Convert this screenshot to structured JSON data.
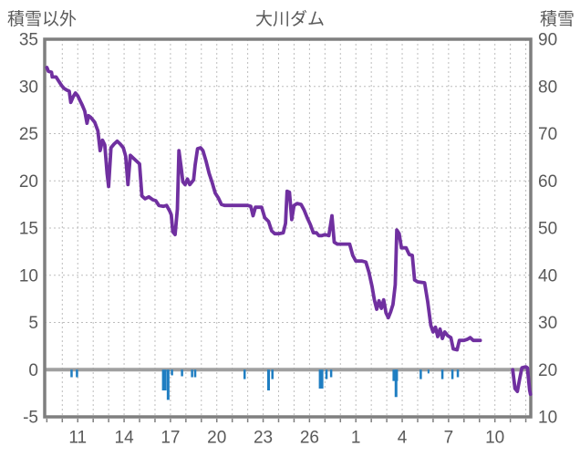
{
  "header": {
    "left_axis_title": "積雪以外",
    "title": "大川ダム",
    "right_axis_title": "積雪"
  },
  "colors": {
    "line": "#7030a0",
    "bars": "#1f7ec2",
    "text": "#595959",
    "border": "#7f7f7f",
    "zero_line": "#a0a0a0",
    "grid": "#bdbdbd",
    "background": "#ffffff"
  },
  "chart_data": {
    "type": "line",
    "title": "大川ダム",
    "grid": "dashed, vertical per day, horizontal per 5 left-units",
    "left_axis": {
      "title": "積雪以外",
      "tick_labels": [
        "35",
        "30",
        "25",
        "20",
        "15",
        "10",
        "5",
        "0",
        "-5"
      ],
      "tick_values": [
        35,
        30,
        25,
        20,
        15,
        10,
        5,
        0,
        -5
      ],
      "range": [
        -5,
        35
      ]
    },
    "right_axis": {
      "title": "積雪",
      "tick_labels": [
        "90",
        "80",
        "70",
        "60",
        "50",
        "40",
        "30",
        "20",
        "10"
      ],
      "tick_values": [
        90,
        80,
        70,
        60,
        50,
        40,
        30,
        20,
        10
      ],
      "range": [
        10,
        90
      ]
    },
    "x_axis": {
      "tick_labels": [
        "11",
        "14",
        "17",
        "20",
        "23",
        "26",
        "1",
        "4",
        "7",
        "10"
      ],
      "tick_day_index": [
        11,
        14,
        17,
        20,
        23,
        26,
        29,
        32,
        35,
        38
      ],
      "note": "day index: 9-28 = first month days 9-28, 29+ = second month day (index-28)",
      "domain_day_index": [
        8.86,
        40.32
      ],
      "minor_ticks": "every integer day"
    },
    "series": [
      {
        "name": "積雪 (snow depth line, plotted in left-axis units; right value = 2*left+20)",
        "type": "line",
        "color": "#7030a0",
        "segments": [
          [
            [
              9.0,
              32.0
            ],
            [
              9.1,
              31.6
            ],
            [
              9.3,
              31.5
            ],
            [
              9.35,
              31.0
            ],
            [
              9.6,
              31.0
            ],
            [
              9.75,
              30.6
            ],
            [
              9.95,
              30.1
            ],
            [
              10.1,
              29.8
            ],
            [
              10.3,
              29.6
            ],
            [
              10.45,
              29.5
            ],
            [
              10.55,
              28.3
            ],
            [
              10.7,
              28.9
            ],
            [
              10.85,
              29.3
            ],
            [
              11.0,
              29.0
            ],
            [
              11.15,
              28.5
            ],
            [
              11.3,
              28.0
            ],
            [
              11.45,
              27.4
            ],
            [
              11.6,
              26.1
            ],
            [
              11.7,
              26.9
            ],
            [
              11.85,
              26.7
            ],
            [
              12.1,
              26.2
            ],
            [
              12.3,
              25.3
            ],
            [
              12.45,
              23.2
            ],
            [
              12.6,
              24.3
            ],
            [
              12.75,
              23.8
            ],
            [
              12.9,
              20.8
            ],
            [
              13.0,
              19.4
            ],
            [
              13.15,
              23.5
            ],
            [
              13.35,
              23.9
            ],
            [
              13.55,
              24.2
            ],
            [
              13.75,
              23.9
            ],
            [
              13.95,
              23.5
            ],
            [
              14.1,
              22.6
            ],
            [
              14.25,
              19.6
            ],
            [
              14.4,
              22.7
            ],
            [
              14.6,
              22.4
            ],
            [
              14.8,
              22.1
            ],
            [
              15.0,
              21.8
            ],
            [
              15.15,
              18.4
            ],
            [
              15.35,
              18.1
            ],
            [
              15.6,
              18.3
            ],
            [
              15.85,
              18.0
            ],
            [
              16.05,
              17.9
            ],
            [
              16.25,
              17.4
            ],
            [
              16.55,
              17.3
            ],
            [
              16.75,
              17.4
            ],
            [
              16.95,
              16.8
            ],
            [
              17.05,
              16.4
            ],
            [
              17.15,
              14.6
            ],
            [
              17.3,
              14.3
            ],
            [
              17.45,
              17.0
            ],
            [
              17.55,
              23.2
            ],
            [
              17.7,
              21.3
            ],
            [
              17.8,
              19.9
            ],
            [
              17.95,
              19.6
            ],
            [
              18.1,
              20.2
            ],
            [
              18.25,
              19.6
            ],
            [
              18.4,
              19.9
            ],
            [
              18.5,
              20.1
            ],
            [
              18.6,
              21.7
            ],
            [
              18.75,
              23.4
            ],
            [
              18.95,
              23.5
            ],
            [
              19.1,
              23.2
            ],
            [
              19.3,
              22.1
            ],
            [
              19.5,
              20.8
            ],
            [
              19.7,
              19.8
            ],
            [
              19.9,
              18.7
            ],
            [
              20.1,
              18.2
            ],
            [
              20.3,
              17.5
            ],
            [
              20.5,
              17.4
            ],
            [
              21.0,
              17.4
            ],
            [
              21.5,
              17.4
            ],
            [
              22.0,
              17.4
            ],
            [
              22.2,
              17.3
            ],
            [
              22.35,
              16.3
            ],
            [
              22.5,
              17.2
            ],
            [
              22.9,
              17.2
            ],
            [
              23.1,
              16.1
            ],
            [
              23.35,
              15.7
            ],
            [
              23.55,
              14.7
            ],
            [
              23.75,
              14.4
            ],
            [
              24.0,
              14.4
            ],
            [
              24.3,
              14.5
            ],
            [
              24.45,
              15.5
            ],
            [
              24.55,
              18.9
            ],
            [
              24.7,
              18.8
            ],
            [
              24.85,
              15.9
            ],
            [
              25.0,
              17.4
            ],
            [
              25.2,
              17.6
            ],
            [
              25.45,
              17.5
            ],
            [
              25.65,
              16.9
            ],
            [
              25.85,
              16.1
            ],
            [
              26.05,
              15.4
            ],
            [
              26.25,
              14.5
            ],
            [
              26.45,
              14.5
            ],
            [
              26.6,
              14.2
            ],
            [
              26.8,
              14.2
            ],
            [
              27.0,
              14.3
            ],
            [
              27.25,
              14.2
            ],
            [
              27.45,
              16.3
            ],
            [
              27.6,
              13.5
            ],
            [
              27.8,
              13.3
            ],
            [
              28.2,
              13.3
            ],
            [
              28.6,
              13.3
            ],
            [
              28.8,
              12.1
            ],
            [
              29.0,
              11.5
            ],
            [
              29.4,
              11.5
            ],
            [
              29.65,
              11.4
            ],
            [
              29.85,
              10.3
            ],
            [
              30.05,
              8.8
            ],
            [
              30.2,
              7.4
            ],
            [
              30.35,
              6.4
            ],
            [
              30.5,
              7.3
            ],
            [
              30.65,
              6.5
            ],
            [
              30.8,
              7.4
            ],
            [
              30.95,
              6.0
            ],
            [
              31.1,
              5.5
            ],
            [
              31.25,
              6.1
            ],
            [
              31.4,
              6.9
            ],
            [
              31.55,
              9.0
            ],
            [
              31.65,
              14.8
            ],
            [
              31.8,
              14.4
            ],
            [
              31.95,
              12.9
            ],
            [
              32.25,
              12.9
            ],
            [
              32.45,
              12.2
            ],
            [
              32.65,
              12.1
            ],
            [
              32.8,
              9.5
            ],
            [
              33.0,
              9.3
            ],
            [
              33.45,
              9.2
            ],
            [
              33.65,
              7.2
            ],
            [
              33.85,
              4.7
            ],
            [
              34.0,
              4.0
            ],
            [
              34.15,
              4.5
            ],
            [
              34.3,
              3.5
            ],
            [
              34.45,
              4.3
            ],
            [
              34.6,
              3.3
            ],
            [
              34.75,
              4.0
            ],
            [
              34.95,
              3.6
            ],
            [
              35.15,
              3.4
            ],
            [
              35.3,
              2.2
            ],
            [
              35.55,
              2.1
            ],
            [
              35.7,
              3.1
            ],
            [
              36.0,
              3.1
            ],
            [
              36.2,
              3.2
            ],
            [
              36.4,
              3.4
            ],
            [
              36.6,
              3.1
            ],
            [
              37.05,
              3.1
            ]
          ],
          [
            [
              39.15,
              0.0
            ],
            [
              39.3,
              -2.0
            ],
            [
              39.45,
              -2.3
            ],
            [
              39.6,
              -1.0
            ],
            [
              39.75,
              0.2
            ],
            [
              40.0,
              0.3
            ],
            [
              40.1,
              0.2
            ],
            [
              40.25,
              -2.2
            ],
            [
              40.3,
              -2.6
            ]
          ]
        ]
      },
      {
        "name": "積雪以外 (blue bars below zero, left-axis units)",
        "type": "bar",
        "color": "#1f7ec2",
        "bars": [
          {
            "d": 10.6,
            "v": -0.8,
            "w": 2.5
          },
          {
            "d": 10.95,
            "v": -0.8,
            "w": 2.5
          },
          {
            "d": 16.6,
            "v": -2.2,
            "w": 5
          },
          {
            "d": 16.85,
            "v": -3.2,
            "w": 3
          },
          {
            "d": 17.1,
            "v": -0.6,
            "w": 2.5
          },
          {
            "d": 17.75,
            "v": -0.7,
            "w": 2.5
          },
          {
            "d": 18.4,
            "v": -0.8,
            "w": 2.5
          },
          {
            "d": 18.6,
            "v": -0.8,
            "w": 2.5
          },
          {
            "d": 21.8,
            "v": -1.0,
            "w": 2.5
          },
          {
            "d": 23.35,
            "v": -2.2,
            "w": 3
          },
          {
            "d": 23.6,
            "v": -1.0,
            "w": 2.5
          },
          {
            "d": 26.75,
            "v": -2.0,
            "w": 5
          },
          {
            "d": 27.1,
            "v": -1.0,
            "w": 2.5
          },
          {
            "d": 27.4,
            "v": -0.8,
            "w": 2.5
          },
          {
            "d": 31.55,
            "v": -1.2,
            "w": 6
          },
          {
            "d": 31.6,
            "v": -2.9,
            "w": 3
          },
          {
            "d": 33.2,
            "v": -1.0,
            "w": 2.5
          },
          {
            "d": 33.7,
            "v": -0.4,
            "w": 2
          },
          {
            "d": 34.6,
            "v": -1.0,
            "w": 2.5
          },
          {
            "d": 35.25,
            "v": -1.0,
            "w": 2.5
          },
          {
            "d": 35.6,
            "v": -0.8,
            "w": 2.5
          }
        ]
      }
    ]
  }
}
